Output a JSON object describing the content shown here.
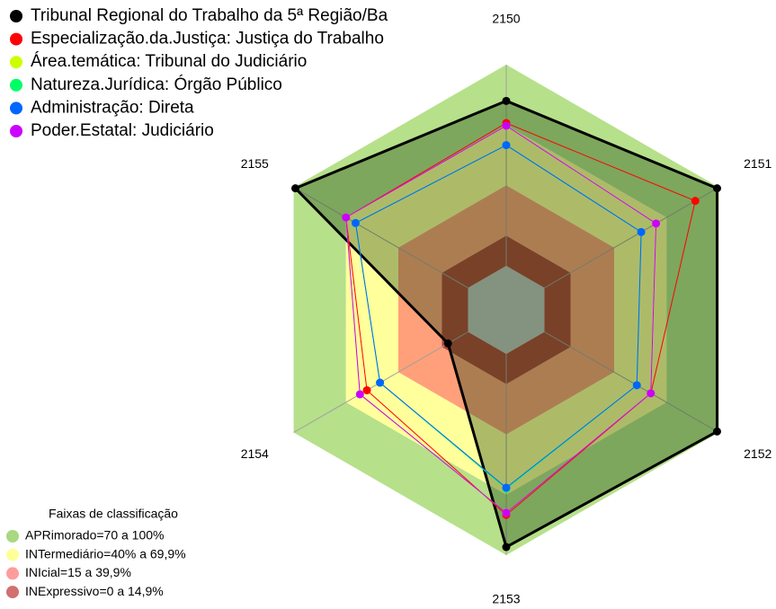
{
  "chart_data": {
    "type": "radar",
    "categories": [
      "2150",
      "2151",
      "2152",
      "2153",
      "2154",
      "2155"
    ],
    "ylim": [
      0,
      100
    ],
    "series": [
      {
        "name": "Tribunal Regional do Trabalho da 5ª Região/Ba",
        "color": "#000000",
        "values": [
          82,
          99,
          99,
          96,
          11.5,
          99
        ]
      },
      {
        "name": "Especialização.da.Justiça: Justiça do Trabalho",
        "color": "#ff0000",
        "values": [
          71,
          86.5,
          61,
          80,
          58,
          70
        ]
      },
      {
        "name": "Área.temática: Tribunal do Judiciário",
        "color": "#ccff00",
        "values": [
          69.5,
          64,
          61,
          79,
          62,
          70
        ]
      },
      {
        "name": "Natureza.Jurídica: Órgão Público",
        "color": "#00ff66",
        "values": [
          60,
          55.5,
          53,
          67,
          50.5,
          64.5
        ]
      },
      {
        "name": "Administração: Direta",
        "color": "#0066ff",
        "values": [
          60,
          55.5,
          53,
          66.5,
          50.5,
          64.5
        ]
      },
      {
        "name": "Poder.Estatal: Judiciário",
        "color": "#cc00ff",
        "values": [
          69.6,
          64,
          61,
          79,
          62,
          70
        ]
      }
    ],
    "bands_title": "Faixas de classificação",
    "bands": [
      {
        "name": "APRimorado=70 a 100%",
        "color": "#b6e08a",
        "legend_color": "#a8d880",
        "min": 70,
        "max": 100
      },
      {
        "name": "INTermediário=40% a 69,9%",
        "color": "#ffff9c",
        "legend_color": "#ffff99",
        "min": 40,
        "max": 70
      },
      {
        "name": "INIcial=15 a 39,9%",
        "color": "#ffa07a",
        "legend_color": "#ff9c9c",
        "min": 15,
        "max": 40
      },
      {
        "name": "INExpressivo=0 a 14,9%",
        "color": "#b0443a",
        "legend_color": "#d07070",
        "min": 0,
        "max": 15
      }
    ]
  }
}
